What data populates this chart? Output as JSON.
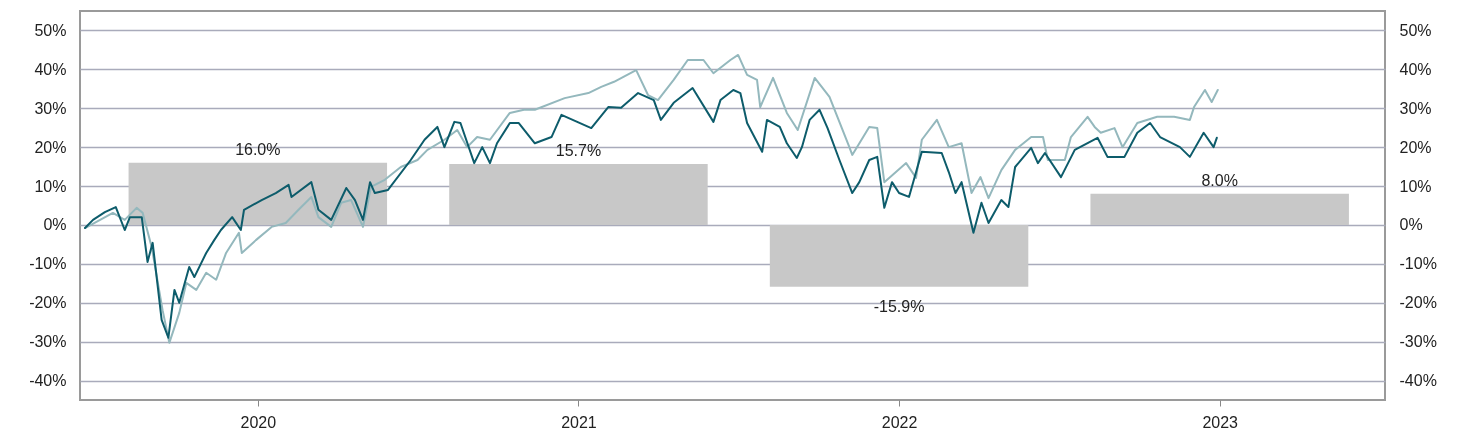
{
  "chart_data": {
    "type": "line",
    "xlim": [
      2019.461,
      2023.5
    ],
    "xticks": [
      2020,
      2021,
      2022,
      2023
    ],
    "ylim": [
      -45,
      55
    ],
    "yticks": [
      {
        "value": -40,
        "label": "-40%"
      },
      {
        "value": -30,
        "label": "-30%"
      },
      {
        "value": -20,
        "label": "-20%"
      },
      {
        "value": -10,
        "label": "-10%"
      },
      {
        "value": 0,
        "label": "0%"
      },
      {
        "value": 10,
        "label": "10%"
      },
      {
        "value": 20,
        "label": "20%"
      },
      {
        "value": 30,
        "label": "30%"
      },
      {
        "value": 40,
        "label": "40%"
      },
      {
        "value": 50,
        "label": "50%"
      }
    ],
    "y2lim": [
      -45,
      55
    ],
    "y2ticks": [
      {
        "value": -40,
        "label": "-40%"
      },
      {
        "value": -30,
        "label": "-30%"
      },
      {
        "value": -20,
        "label": "-20%"
      },
      {
        "value": -10,
        "label": "-10%"
      },
      {
        "value": 0,
        "label": "0%"
      },
      {
        "value": 10,
        "label": "10%"
      },
      {
        "value": 20,
        "label": "20%"
      },
      {
        "value": 30,
        "label": "30%"
      },
      {
        "value": 40,
        "label": "40%"
      },
      {
        "value": 50,
        "label": "50%"
      }
    ],
    "grid": "y",
    "series": [
      {
        "type": "bar",
        "color": "#c8c8c8",
        "x": [
          2020,
          2021,
          2022,
          2023
        ],
        "values": [
          16.0,
          15.7,
          -15.9,
          8.0
        ],
        "value_labels": [
          "16.0%",
          "15.7%",
          "-15.9%",
          "8.0%"
        ]
      },
      {
        "color": "#94b8bd",
        "x": [
          2019.461,
          2019.548,
          2019.585,
          2019.622,
          2019.641,
          2019.669,
          2019.703,
          2019.724,
          2019.755,
          2019.777,
          2019.808,
          2019.839,
          2019.87,
          2019.901,
          2019.941,
          2019.95,
          2019.994,
          2020.043,
          2020.087,
          2020.127,
          2020.167,
          2020.189,
          2020.229,
          2020.26,
          2020.291,
          2020.328,
          2020.353,
          2020.396,
          2020.446,
          2020.498,
          2020.529,
          2020.582,
          2020.622,
          2020.653,
          2020.684,
          2020.724,
          2020.786,
          2020.83,
          2020.864,
          2020.957,
          2021.031,
          2021.071,
          2021.111,
          2021.18,
          2021.217,
          2021.248,
          2021.297,
          2021.341,
          2021.39,
          2021.421,
          2021.474,
          2021.498,
          2021.526,
          2021.557,
          2021.567,
          2021.607,
          2021.65,
          2021.684,
          2021.737,
          2021.783,
          2021.845,
          2021.854,
          2021.907,
          2021.932,
          2021.954,
          2022.022,
          2022.053,
          2022.071,
          2022.118,
          2022.155,
          2022.195,
          2022.226,
          2022.254,
          2022.279,
          2022.319,
          2022.362,
          2022.412,
          2022.449,
          2022.464,
          2022.517,
          2022.536,
          2022.588,
          2022.61,
          2022.629,
          2022.672,
          2022.697,
          2022.743,
          2022.805,
          2022.858,
          2022.907,
          2022.92,
          2022.954,
          2022.975,
          2022.994
        ],
        "values": [
          -0.8,
          3.1,
          1.3,
          4.4,
          3.1,
          -5.7,
          -21.9,
          -30.3,
          -22.6,
          -14.9,
          -16.7,
          -12.3,
          -14.1,
          -7.2,
          -2,
          -7.2,
          -3.9,
          -0.5,
          0.5,
          3.9,
          7.2,
          2,
          -0.5,
          5.7,
          6.4,
          -0.5,
          9.8,
          11.6,
          14.9,
          16.7,
          19.3,
          21.9,
          24.4,
          20,
          22.6,
          21.9,
          28.8,
          29.6,
          29.6,
          32.6,
          33.9,
          35.5,
          36.8,
          39.8,
          33.4,
          32.1,
          37.3,
          42.4,
          42.4,
          39,
          42.4,
          43.7,
          38.6,
          37.3,
          30.3,
          37.8,
          28.8,
          24.4,
          37.8,
          32.9,
          20,
          18,
          25.2,
          24.9,
          11,
          15.9,
          12.1,
          21.9,
          27,
          20,
          21,
          8.2,
          12.3,
          6.9,
          14.1,
          19.3,
          22.6,
          22.6,
          16.7,
          16.7,
          22.6,
          27.8,
          25.2,
          23.7,
          24.9,
          20,
          26.2,
          27.8,
          27.8,
          27,
          30.3,
          34.7,
          31.6,
          34.7
        ]
      },
      {
        "color": "#0d5c6b",
        "x": [
          2019.461,
          2019.486,
          2019.523,
          2019.557,
          2019.585,
          2019.601,
          2019.638,
          2019.656,
          2019.672,
          2019.7,
          2019.721,
          2019.74,
          2019.755,
          2019.786,
          2019.802,
          2019.839,
          2019.864,
          2019.885,
          2019.92,
          2019.947,
          2019.957,
          2020.012,
          2020.056,
          2020.096,
          2020.105,
          2020.167,
          2020.189,
          2020.229,
          2020.276,
          2020.303,
          2020.328,
          2020.35,
          2020.365,
          2020.406,
          2020.477,
          2020.52,
          2020.56,
          2020.582,
          2020.613,
          2020.632,
          2020.675,
          2020.7,
          2020.724,
          2020.746,
          2020.786,
          2020.814,
          2020.864,
          2020.916,
          2020.947,
          2021.04,
          2021.093,
          2021.133,
          2021.186,
          2021.235,
          2021.257,
          2021.297,
          2021.356,
          2021.421,
          2021.443,
          2021.483,
          2021.505,
          2021.526,
          2021.573,
          2021.588,
          2021.628,
          2021.65,
          2021.681,
          2021.697,
          2021.721,
          2021.752,
          2021.777,
          2021.814,
          2021.854,
          2021.876,
          2021.907,
          2021.932,
          2021.954,
          2021.978,
          2022.0,
          2022.031,
          2022.071,
          2022.133,
          2022.155,
          2022.176,
          2022.195,
          2022.232,
          2022.257,
          2022.279,
          2022.319,
          2022.341,
          2022.362,
          2022.412,
          2022.433,
          2022.455,
          2022.505,
          2022.548,
          2022.619,
          2022.65,
          2022.703,
          2022.743,
          2022.783,
          2022.814,
          2022.876,
          2022.907,
          2022.95,
          2022.981,
          2022.991
        ],
        "values": [
          -0.8,
          1.3,
          3.3,
          4.6,
          -1.3,
          2,
          2,
          -9.5,
          -4.6,
          -24.4,
          -29,
          -16.7,
          -20,
          -10.8,
          -13.4,
          -7.2,
          -3.9,
          -1.3,
          2,
          -1.3,
          3.9,
          6.4,
          8.2,
          10.3,
          7.2,
          11,
          3.9,
          1.3,
          9.5,
          6.4,
          1.3,
          11,
          8.2,
          9,
          16.7,
          21.9,
          25.2,
          20,
          26.5,
          26.2,
          15.9,
          20,
          15.9,
          21,
          26.2,
          26.2,
          21,
          22.6,
          28.3,
          24.9,
          30.3,
          30.1,
          33.9,
          32.1,
          27,
          31.4,
          35.2,
          26.5,
          32.1,
          34.7,
          33.9,
          26.2,
          18.8,
          27,
          25.2,
          21,
          17.2,
          20,
          27,
          29.6,
          24.9,
          16.7,
          8.2,
          11,
          16.7,
          17.5,
          4.4,
          11,
          8.2,
          7.2,
          18.8,
          18.5,
          13.6,
          8.2,
          11,
          -2,
          5.7,
          0.5,
          6.4,
          4.6,
          14.9,
          19.8,
          15.9,
          18.5,
          12.3,
          19.3,
          22.4,
          17.5,
          17.5,
          23.7,
          26.2,
          22.6,
          20,
          17.5,
          23.7,
          20,
          22.4
        ]
      }
    ]
  }
}
